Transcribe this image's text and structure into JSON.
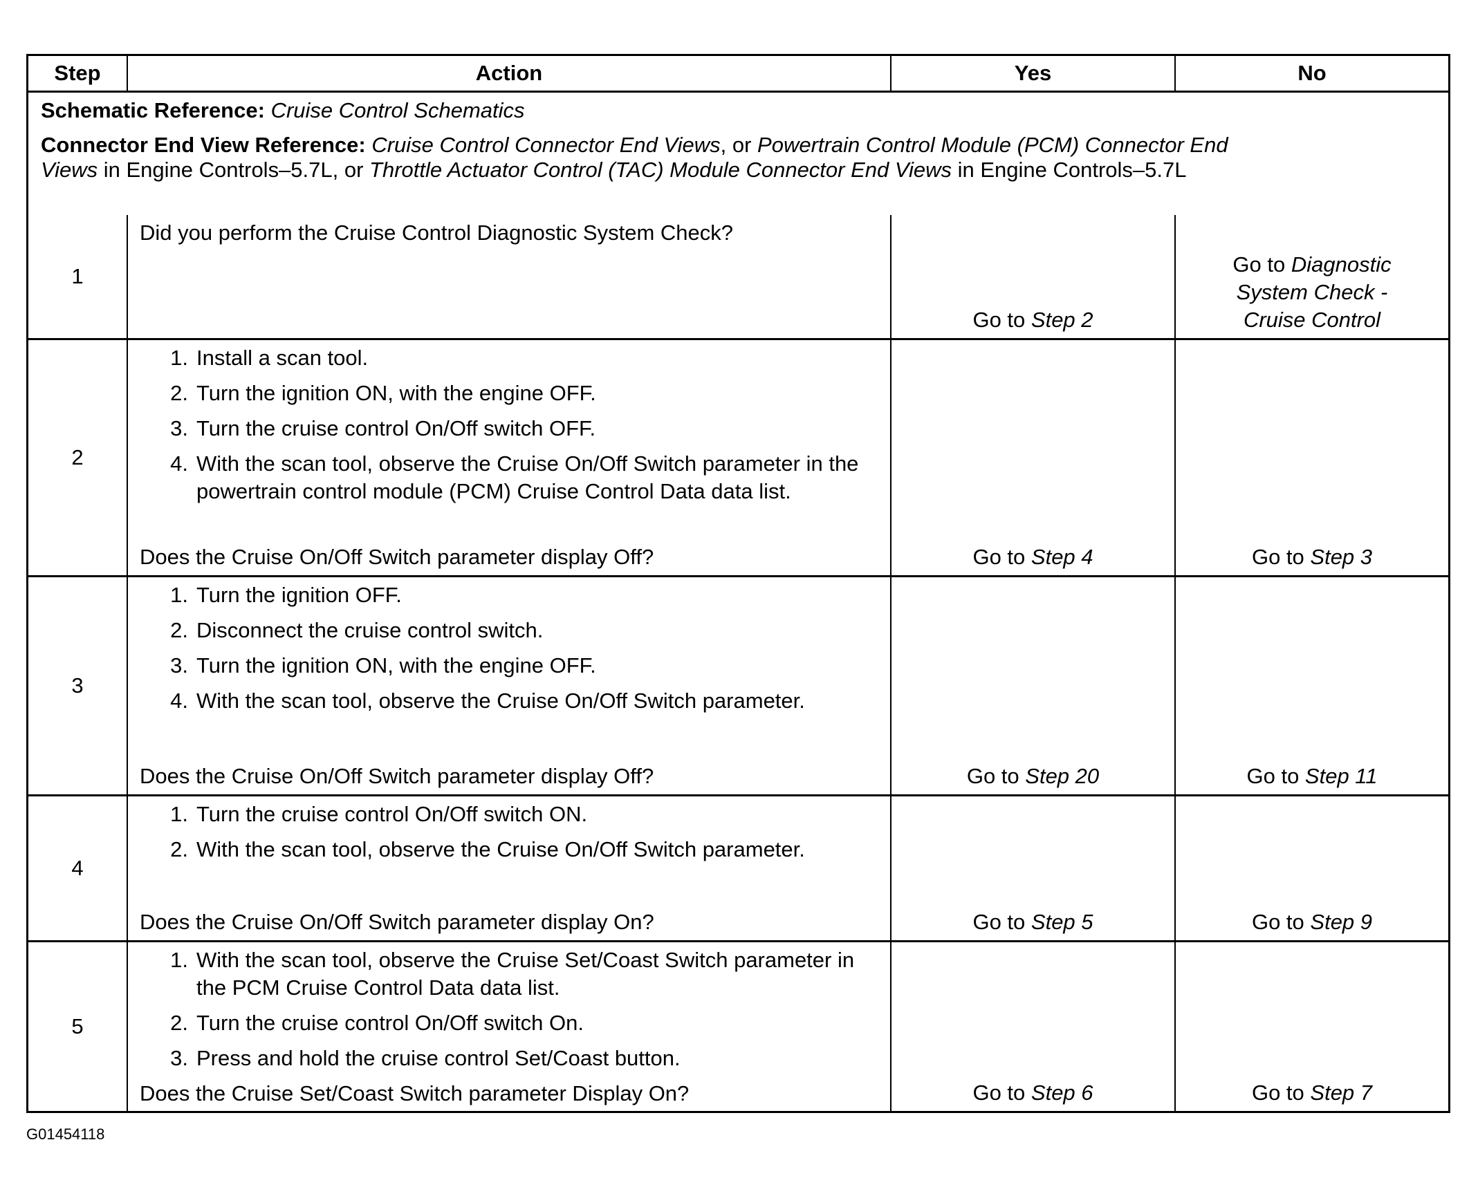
{
  "headers": {
    "step": "Step",
    "action": "Action",
    "yes": "Yes",
    "no": "No"
  },
  "reference": {
    "schematic_label": "Schematic Reference:",
    "schematic_value": "Cruise Control Schematics",
    "connector_label": "Connector End View Reference:",
    "c1": "Cruise Control Connector End Views",
    "c2": ", or ",
    "c3": "Powertrain Control Module (PCM) Connector End Views",
    "c4": " in Engine Controls–5.7L, or ",
    "c5": "Throttle Actuator Control (TAC) Module Connector End Views",
    "c6": " in Engine Controls–5.7L"
  },
  "rows": [
    {
      "step": "1",
      "items": [],
      "question": "Did you perform the Cruise Control Diagnostic System Check?",
      "yes_prefix": "Go to ",
      "yes_link": "Step 2",
      "no_prefix": "Go to ",
      "no_link": "Diagnostic System Check - Cruise Control"
    },
    {
      "step": "2",
      "items": [
        {
          "n": "1.",
          "t": "Install a scan tool."
        },
        {
          "n": "2.",
          "t": "Turn the ignition ON, with the engine OFF."
        },
        {
          "n": "3.",
          "t": "Turn the cruise control On/Off switch OFF."
        },
        {
          "n": "4.",
          "t": "With the scan tool, observe the Cruise On/Off Switch parameter in the powertrain control module (PCM) Cruise Control Data data list."
        }
      ],
      "question": "Does the Cruise On/Off Switch parameter display Off?",
      "yes_prefix": "Go to ",
      "yes_link": "Step 4",
      "no_prefix": "Go to ",
      "no_link": "Step 3"
    },
    {
      "step": "3",
      "items": [
        {
          "n": "1.",
          "t": "Turn the ignition OFF."
        },
        {
          "n": "2.",
          "t": "Disconnect the cruise control switch."
        },
        {
          "n": "3.",
          "t": "Turn the ignition ON, with the engine OFF."
        },
        {
          "n": "4.",
          "t": "With the scan tool, observe the Cruise On/Off Switch parameter."
        }
      ],
      "question": "Does the Cruise On/Off Switch parameter display Off?",
      "yes_prefix": "Go to ",
      "yes_link": "Step 20",
      "no_prefix": "Go to ",
      "no_link": "Step 11"
    },
    {
      "step": "4",
      "items": [
        {
          "n": "1.",
          "t": "Turn the cruise control On/Off switch ON."
        },
        {
          "n": "2.",
          "t": "With the scan tool, observe the Cruise On/Off Switch parameter."
        }
      ],
      "question": "Does the Cruise On/Off Switch parameter display On?",
      "yes_prefix": "Go to ",
      "yes_link": "Step 5",
      "no_prefix": "Go to ",
      "no_link": "Step 9"
    },
    {
      "step": "5",
      "items": [
        {
          "n": "1.",
          "t": "With the scan tool, observe the Cruise Set/Coast Switch parameter in the PCM Cruise Control Data data list."
        },
        {
          "n": "2.",
          "t": "Turn the cruise control On/Off switch On."
        },
        {
          "n": "3.",
          "t": "Press and hold the cruise control Set/Coast button."
        }
      ],
      "question": "Does the Cruise Set/Coast Switch parameter Display On?",
      "yes_prefix": "Go to ",
      "yes_link": "Step 6",
      "no_prefix": "Go to ",
      "no_link": "Step 7"
    }
  ],
  "figure_code": "G01454118"
}
